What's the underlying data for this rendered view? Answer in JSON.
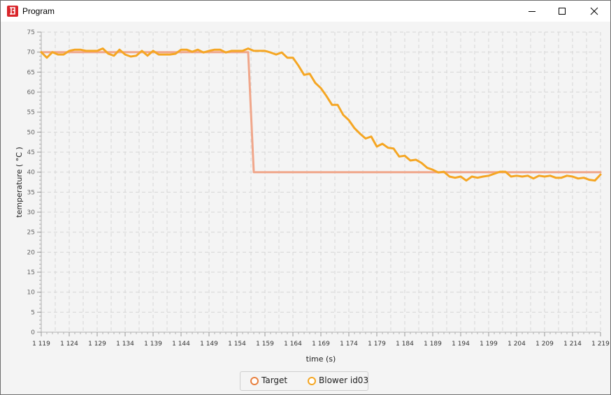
{
  "window": {
    "title": "Program",
    "controls": [
      "minimize-icon",
      "maximize-icon",
      "close-icon"
    ]
  },
  "chart_data": {
    "type": "line",
    "xlabel": "time (s)",
    "ylabel": "temperature ( °C )",
    "xlim": [
      1119,
      1219
    ],
    "ylim": [
      0,
      75
    ],
    "x_tick_labels": [
      "1 119",
      "1 124",
      "1 129",
      "1 134",
      "1 139",
      "1 144",
      "1 149",
      "1 154",
      "1 159",
      "1 164",
      "1 169",
      "1 174",
      "1 179",
      "1 184",
      "1 189",
      "1 194",
      "1 199",
      "1 204",
      "1 209",
      "1 214",
      "1 219"
    ],
    "x_ticks": [
      1119,
      1124,
      1129,
      1134,
      1139,
      1144,
      1149,
      1154,
      1159,
      1164,
      1169,
      1174,
      1179,
      1184,
      1189,
      1194,
      1199,
      1204,
      1209,
      1214,
      1219
    ],
    "y_ticks": [
      0,
      5,
      10,
      15,
      20,
      25,
      30,
      35,
      40,
      45,
      50,
      55,
      60,
      65,
      70,
      75
    ],
    "grid": true,
    "legend_position": "bottom",
    "series": [
      {
        "name": "Target",
        "color": "#f0a68a",
        "x": [
          1119,
          1156,
          1157,
          1219
        ],
        "y": [
          70,
          70,
          40,
          40
        ]
      },
      {
        "name": "Blower id03",
        "color": "#f5a623",
        "x": [
          1119,
          1120,
          1121,
          1122,
          1123,
          1124,
          1125,
          1126,
          1127,
          1128,
          1129,
          1130,
          1131,
          1132,
          1133,
          1134,
          1135,
          1136,
          1137,
          1138,
          1139,
          1140,
          1141,
          1142,
          1143,
          1144,
          1145,
          1146,
          1147,
          1148,
          1149,
          1150,
          1151,
          1152,
          1153,
          1154,
          1155,
          1156,
          1157,
          1158,
          1159,
          1160,
          1161,
          1162,
          1163,
          1164,
          1165,
          1166,
          1167,
          1168,
          1169,
          1170,
          1171,
          1172,
          1173,
          1174,
          1175,
          1176,
          1177,
          1178,
          1179,
          1180,
          1181,
          1182,
          1183,
          1184,
          1185,
          1186,
          1187,
          1188,
          1189,
          1190,
          1191,
          1192,
          1193,
          1194,
          1195,
          1196,
          1197,
          1198,
          1199,
          1200,
          1201,
          1202,
          1203,
          1204,
          1205,
          1206,
          1207,
          1208,
          1209,
          1210,
          1211,
          1212,
          1213,
          1214,
          1215,
          1216,
          1217,
          1218,
          1219
        ],
        "y": [
          70,
          68.6,
          70,
          69.4,
          69.4,
          70.3,
          70.6,
          70.6,
          70.3,
          70.3,
          70.3,
          70.9,
          69.6,
          69.1,
          70.6,
          69.4,
          68.9,
          69.1,
          70.3,
          69.1,
          70.3,
          69.4,
          69.4,
          69.4,
          69.6,
          70.6,
          70.6,
          70.1,
          70.6,
          69.9,
          70.3,
          70.6,
          70.6,
          69.9,
          70.3,
          70.3,
          70.3,
          70.9,
          70.3,
          70.3,
          70.3,
          69.9,
          69.4,
          69.9,
          68.6,
          68.6,
          66.6,
          64.3,
          64.6,
          62.3,
          61.0,
          59.0,
          56.8,
          56.8,
          54.3,
          53.0,
          51.0,
          49.6,
          48.4,
          48.9,
          46.4,
          47.1,
          46.1,
          45.9,
          43.9,
          44.1,
          42.9,
          43.1,
          42.3,
          41.1,
          40.6,
          39.9,
          40.1,
          38.9,
          38.6,
          38.9,
          37.9,
          38.9,
          38.6,
          38.9,
          39.1,
          39.6,
          40.1,
          40.1,
          38.9,
          39.1,
          38.9,
          39.1,
          38.4,
          39.1,
          38.9,
          39.1,
          38.6,
          38.6,
          39.1,
          38.9,
          38.4,
          38.6,
          38.1,
          37.9,
          39.4
        ]
      }
    ]
  }
}
